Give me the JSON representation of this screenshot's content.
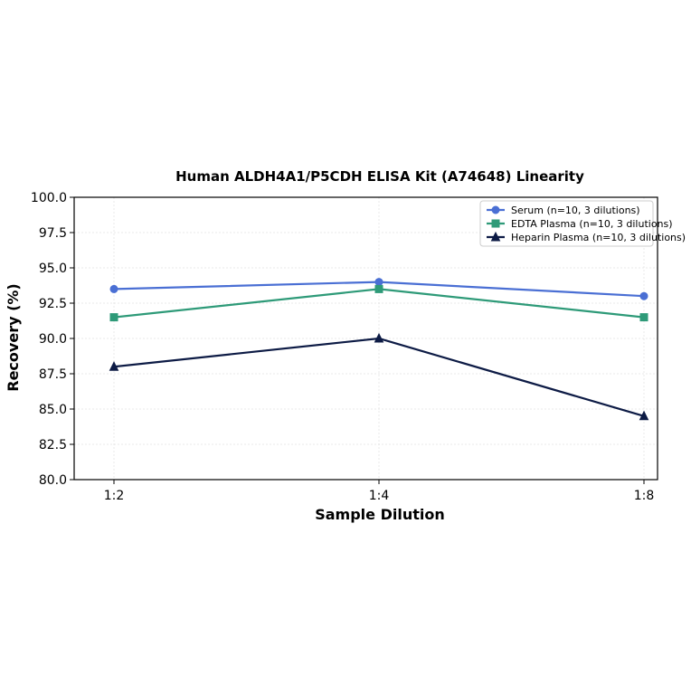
{
  "chart_data": {
    "type": "line",
    "title": "Human ALDH4A1/P5CDH ELISA Kit (A74648) Linearity",
    "xlabel": "Sample Dilution",
    "ylabel": "Recovery (%)",
    "categories": [
      "1:2",
      "1:4",
      "1:8"
    ],
    "ylim": [
      80.0,
      100.0
    ],
    "yticks": [
      "80.0",
      "82.5",
      "85.0",
      "87.5",
      "90.0",
      "92.5",
      "95.0",
      "97.5",
      "100.0"
    ],
    "grid": true,
    "legend_position": "top-right",
    "series": [
      {
        "name": "Serum (n=10, 3 dilutions)",
        "values": [
          93.5,
          94.0,
          93.0
        ],
        "color": "#4a6fd4",
        "marker": "circle"
      },
      {
        "name": "EDTA Plasma (n=10, 3 dilutions)",
        "values": [
          91.5,
          93.5,
          91.5
        ],
        "color": "#2e9a78",
        "marker": "square"
      },
      {
        "name": "Heparin Plasma (n=10, 3 dilutions)",
        "values": [
          88.0,
          90.0,
          84.5
        ],
        "color": "#0d1b45",
        "marker": "triangle"
      }
    ]
  }
}
